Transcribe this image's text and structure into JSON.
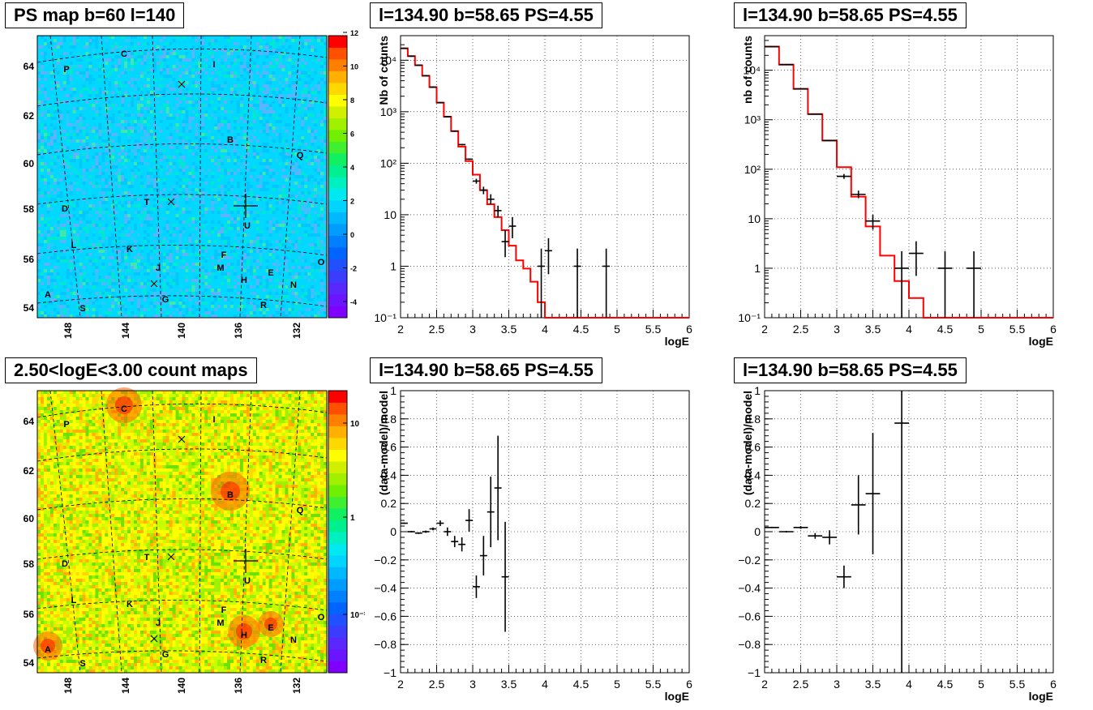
{
  "panels": {
    "ps_map": {
      "title": "PS map b=60 l=140",
      "x_ticks": [
        "148",
        "144",
        "140",
        "136",
        "132"
      ],
      "y_ticks": [
        "54",
        "56",
        "58",
        "60",
        "62",
        "64"
      ],
      "colorbar_ticks": [
        "-4",
        "-2",
        "0",
        "2",
        "4",
        "6",
        "8",
        "10",
        "12"
      ],
      "sources": [
        "C",
        "P",
        "I",
        "B",
        "Q",
        "D",
        "T",
        "U",
        "L",
        "K",
        "F",
        "J",
        "M",
        "O",
        "H",
        "E",
        "N",
        "A",
        "S",
        "G",
        "R"
      ]
    },
    "count_map": {
      "title": "2.50<logE<3.00 count maps",
      "x_ticks": [
        "148",
        "144",
        "140",
        "136",
        "132"
      ],
      "y_ticks": [
        "54",
        "56",
        "58",
        "60",
        "62",
        "64"
      ],
      "colorbar_ticks": [
        "10",
        "1",
        "10⁻¹"
      ],
      "sources": [
        "C",
        "P",
        "I",
        "B",
        "Q",
        "D",
        "T",
        "U",
        "L",
        "K",
        "F",
        "J",
        "M",
        "O",
        "H",
        "E",
        "N",
        "A",
        "S",
        "G",
        "R"
      ]
    }
  },
  "chart_data": [
    {
      "type": "line",
      "title": "l=134.90 b=58.65 PS=4.55",
      "xlabel": "logE",
      "ylabel": "Nb of counts",
      "xlim": [
        2,
        6
      ],
      "ylim": [
        0.1,
        30000
      ],
      "yscale": "log",
      "x_ticks": [
        "2",
        "2.5",
        "3",
        "3.5",
        "4",
        "4.5",
        "5",
        "5.5",
        "6"
      ],
      "y_ticks": [
        "10⁻¹",
        "1",
        "10",
        "10²",
        "10³",
        "10⁴"
      ],
      "grid": true,
      "model": {
        "edges": [
          2.0,
          2.1,
          2.2,
          2.3,
          2.4,
          2.5,
          2.6,
          2.7,
          2.8,
          2.9,
          3.0,
          3.1,
          3.2,
          3.3,
          3.4,
          3.5,
          3.6,
          3.7,
          3.8,
          3.9,
          4.0,
          4.1,
          6.0
        ],
        "values": [
          17000,
          12000,
          8000,
          5000,
          3000,
          1500,
          800,
          420,
          210,
          110,
          60,
          30,
          16,
          9,
          5,
          2.5,
          1.3,
          0.9,
          0.5,
          0.2,
          0.1,
          0.1
        ]
      },
      "data": [
        {
          "x": 2.05,
          "y": 17000
        },
        {
          "x": 2.15,
          "y": 12000
        },
        {
          "x": 2.25,
          "y": 8000
        },
        {
          "x": 2.35,
          "y": 5000
        },
        {
          "x": 2.45,
          "y": 3000
        },
        {
          "x": 2.55,
          "y": 1500
        },
        {
          "x": 2.65,
          "y": 800
        },
        {
          "x": 2.75,
          "y": 420
        },
        {
          "x": 2.85,
          "y": 230
        },
        {
          "x": 2.95,
          "y": 120
        },
        {
          "x": 3.05,
          "y": 45,
          "lo": 40,
          "hi": 50
        },
        {
          "x": 3.15,
          "y": 30,
          "lo": 25,
          "hi": 35
        },
        {
          "x": 3.25,
          "y": 20,
          "lo": 16,
          "hi": 25
        },
        {
          "x": 3.35,
          "y": 12,
          "lo": 9,
          "hi": 15
        },
        {
          "x": 3.45,
          "y": 3,
          "lo": 1.5,
          "hi": 5
        },
        {
          "x": 3.55,
          "y": 6,
          "lo": 3.5,
          "hi": 9
        },
        {
          "x": 3.95,
          "y": 1,
          "lo": 0.1,
          "hi": 2.2
        },
        {
          "x": 4.05,
          "y": 2,
          "lo": 0.7,
          "hi": 3.5
        },
        {
          "x": 4.45,
          "y": 1,
          "lo": 0.1,
          "hi": 2.2
        },
        {
          "x": 4.85,
          "y": 1,
          "lo": 0.1,
          "hi": 2.2
        }
      ]
    },
    {
      "type": "line",
      "title": "l=134.90 b=58.65 PS=4.55",
      "xlabel": "logE",
      "ylabel": "nb of counts",
      "xlim": [
        2,
        6
      ],
      "ylim": [
        0.1,
        50000
      ],
      "yscale": "log",
      "x_ticks": [
        "2",
        "2.5",
        "3",
        "3.5",
        "4",
        "4.5",
        "5",
        "5.5",
        "6"
      ],
      "y_ticks": [
        "10⁻¹",
        "1",
        "10",
        "10²",
        "10³",
        "10⁴"
      ],
      "grid": true,
      "model": {
        "edges": [
          2.0,
          2.2,
          2.4,
          2.6,
          2.8,
          3.0,
          3.2,
          3.4,
          3.6,
          3.8,
          4.0,
          4.2,
          6.0
        ],
        "values": [
          30000,
          13000,
          4200,
          1300,
          380,
          110,
          28,
          7,
          1.8,
          0.55,
          0.25,
          0.1
        ]
      },
      "data": [
        {
          "x": 2.1,
          "y": 30000
        },
        {
          "x": 2.3,
          "y": 13000
        },
        {
          "x": 2.5,
          "y": 4200
        },
        {
          "x": 2.7,
          "y": 1300
        },
        {
          "x": 2.9,
          "y": 380
        },
        {
          "x": 3.1,
          "y": 72,
          "lo": 64,
          "hi": 80
        },
        {
          "x": 3.3,
          "y": 31,
          "lo": 26,
          "hi": 37
        },
        {
          "x": 3.5,
          "y": 9,
          "lo": 6,
          "hi": 12
        },
        {
          "x": 3.9,
          "y": 1,
          "lo": 0.1,
          "hi": 2.2
        },
        {
          "x": 4.1,
          "y": 2,
          "lo": 0.7,
          "hi": 3.5
        },
        {
          "x": 4.5,
          "y": 1,
          "lo": 0.1,
          "hi": 2.2
        },
        {
          "x": 4.9,
          "y": 1,
          "lo": 0.1,
          "hi": 2.2
        }
      ]
    },
    {
      "type": "scatter",
      "title": "l=134.90 b=58.65 PS=4.55",
      "xlabel": "logE",
      "ylabel": "(data-model)/model",
      "xlim": [
        2,
        6
      ],
      "ylim": [
        -1,
        1
      ],
      "x_ticks": [
        "2",
        "2.5",
        "3",
        "3.5",
        "4",
        "4.5",
        "5",
        "5.5",
        "6"
      ],
      "y_ticks": [
        "−1",
        "−0.8",
        "−0.6",
        "−0.4",
        "−0.2",
        "0",
        "0.2",
        "0.4",
        "0.6",
        "0.8",
        "1"
      ],
      "grid": true,
      "data": [
        {
          "x": 2.05,
          "y": 0.06,
          "e": 0.005,
          "xe": 0.05
        },
        {
          "x": 2.15,
          "y": 0.0,
          "e": 0.005,
          "xe": 0.05
        },
        {
          "x": 2.25,
          "y": -0.01,
          "e": 0.006,
          "xe": 0.05
        },
        {
          "x": 2.35,
          "y": 0.0,
          "e": 0.008,
          "xe": 0.05
        },
        {
          "x": 2.45,
          "y": 0.02,
          "e": 0.01,
          "xe": 0.05
        },
        {
          "x": 2.55,
          "y": 0.06,
          "e": 0.02,
          "xe": 0.05
        },
        {
          "x": 2.65,
          "y": 0.0,
          "e": 0.03,
          "xe": 0.05
        },
        {
          "x": 2.75,
          "y": -0.07,
          "e": 0.04,
          "xe": 0.05
        },
        {
          "x": 2.85,
          "y": -0.09,
          "e": 0.05,
          "xe": 0.05
        },
        {
          "x": 2.95,
          "y": 0.08,
          "e": 0.08,
          "xe": 0.05
        },
        {
          "x": 3.05,
          "y": -0.39,
          "e": 0.08,
          "xe": 0.05
        },
        {
          "x": 3.15,
          "y": -0.17,
          "e": 0.14,
          "xe": 0.05
        },
        {
          "x": 3.25,
          "y": 0.14,
          "e": 0.25,
          "xe": 0.05
        },
        {
          "x": 3.35,
          "y": 0.31,
          "e": 0.37,
          "xe": 0.05
        },
        {
          "x": 3.45,
          "y": -0.32,
          "e": 0.39,
          "xe": 0.05
        }
      ]
    },
    {
      "type": "scatter",
      "title": "l=134.90 b=58.65 PS=4.55",
      "xlabel": "logE",
      "ylabel": "(data-model)/model",
      "xlim": [
        2,
        6
      ],
      "ylim": [
        -1,
        1
      ],
      "x_ticks": [
        "2",
        "2.5",
        "3",
        "3.5",
        "4",
        "4.5",
        "5",
        "5.5",
        "6"
      ],
      "y_ticks": [
        "−1",
        "−0.8",
        "−0.6",
        "−0.4",
        "−0.2",
        "0",
        "0.2",
        "0.4",
        "0.6",
        "0.8",
        "1"
      ],
      "grid": true,
      "data": [
        {
          "x": 2.1,
          "y": 0.03,
          "e": 0.005,
          "xe": 0.1
        },
        {
          "x": 2.3,
          "y": 0.0,
          "e": 0.005,
          "xe": 0.1
        },
        {
          "x": 2.5,
          "y": 0.03,
          "e": 0.01,
          "xe": 0.1
        },
        {
          "x": 2.7,
          "y": -0.03,
          "e": 0.02,
          "xe": 0.1
        },
        {
          "x": 2.9,
          "y": -0.04,
          "e": 0.05,
          "xe": 0.1
        },
        {
          "x": 3.1,
          "y": -0.32,
          "e": 0.08,
          "xe": 0.1
        },
        {
          "x": 3.3,
          "y": 0.19,
          "e": 0.21,
          "xe": 0.1
        },
        {
          "x": 3.5,
          "y": 0.27,
          "e": 0.43,
          "xe": 0.1
        },
        {
          "x": 3.9,
          "y": 0.77,
          "e": 1.9,
          "xe": 0.1
        }
      ]
    }
  ]
}
